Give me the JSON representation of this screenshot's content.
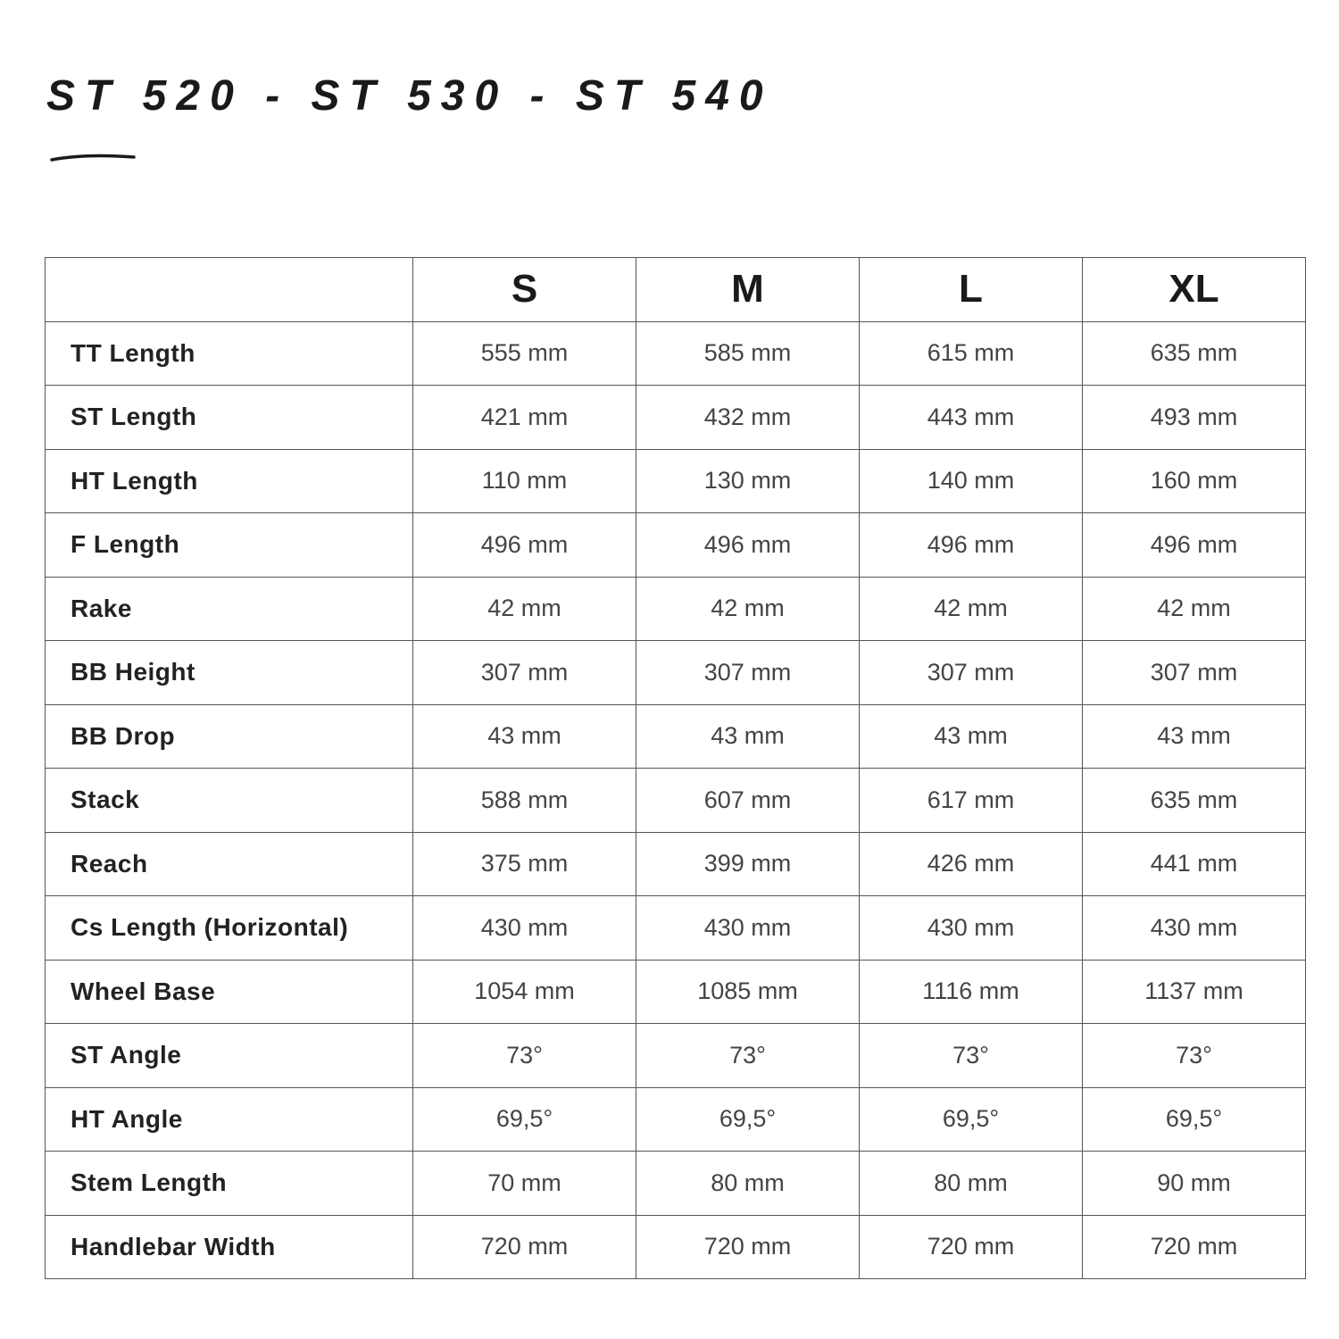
{
  "title": "ST 520 - ST 530 - ST 540",
  "table": {
    "columns": [
      "",
      "S",
      "M",
      "L",
      "XL"
    ],
    "rows": [
      {
        "label": "TT Length",
        "values": [
          "555 mm",
          "585 mm",
          "615 mm",
          "635 mm"
        ]
      },
      {
        "label": "ST Length",
        "values": [
          "421 mm",
          "432 mm",
          "443 mm",
          "493 mm"
        ]
      },
      {
        "label": "HT Length",
        "values": [
          "110 mm",
          "130 mm",
          "140 mm",
          "160 mm"
        ]
      },
      {
        "label": "F Length",
        "values": [
          "496 mm",
          "496 mm",
          "496 mm",
          "496 mm"
        ]
      },
      {
        "label": "Rake",
        "values": [
          "42 mm",
          "42 mm",
          "42 mm",
          "42 mm"
        ]
      },
      {
        "label": "BB Height",
        "values": [
          "307 mm",
          "307 mm",
          "307 mm",
          "307 mm"
        ]
      },
      {
        "label": "BB Drop",
        "values": [
          "43 mm",
          "43 mm",
          "43 mm",
          "43 mm"
        ]
      },
      {
        "label": "Stack",
        "values": [
          "588 mm",
          "607 mm",
          "617 mm",
          "635 mm"
        ]
      },
      {
        "label": "Reach",
        "values": [
          "375 mm",
          "399 mm",
          "426 mm",
          "441 mm"
        ]
      },
      {
        "label": "Cs Length (Horizontal)",
        "values": [
          "430 mm",
          "430 mm",
          "430 mm",
          "430 mm"
        ]
      },
      {
        "label": "Wheel Base",
        "values": [
          "1054 mm",
          "1085 mm",
          "1116 mm",
          "1137 mm"
        ]
      },
      {
        "label": "ST Angle",
        "values": [
          "73°",
          "73°",
          "73°",
          "73°"
        ]
      },
      {
        "label": "HT Angle",
        "values": [
          "69,5°",
          "69,5°",
          "69,5°",
          "69,5°"
        ]
      },
      {
        "label": "Stem Length",
        "values": [
          "70 mm",
          "80 mm",
          "80 mm",
          "90 mm"
        ]
      },
      {
        "label": "Handlebar Width",
        "values": [
          "720 mm",
          "720 mm",
          "720 mm",
          "720 mm"
        ]
      }
    ]
  }
}
